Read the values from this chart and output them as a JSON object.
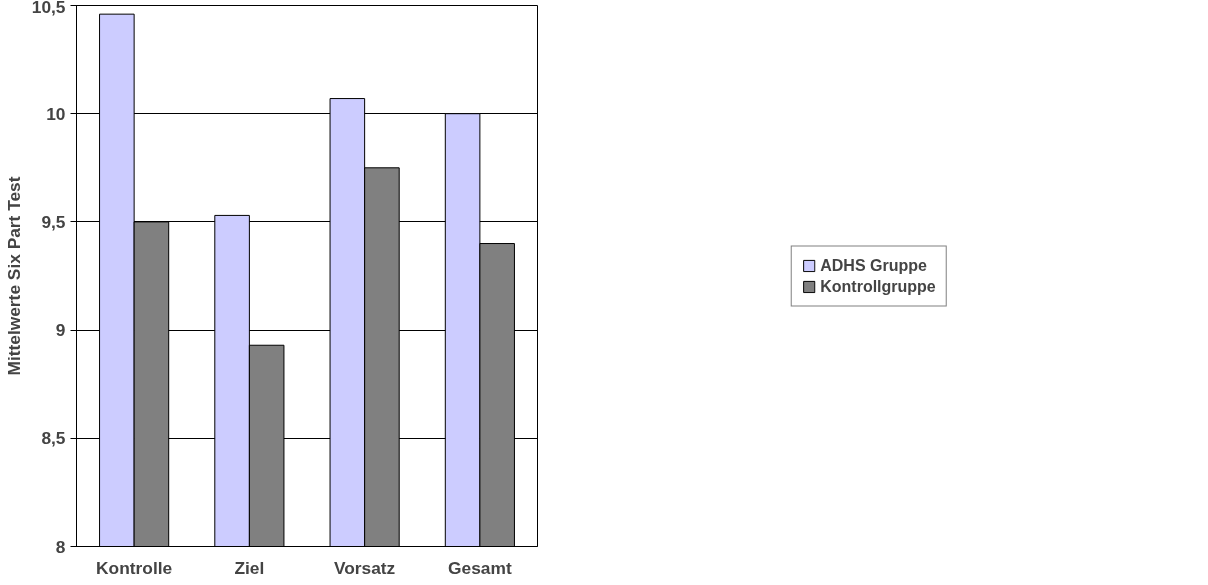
{
  "chart_data": {
    "type": "bar",
    "ylabel": "Mittelwerte Six Part Test",
    "categories": [
      "Kontrolle",
      "Ziel",
      "Vorsatz",
      "Gesamt"
    ],
    "series": [
      {
        "name": "ADHS Gruppe",
        "color": "#ccccff",
        "values": [
          10.46,
          9.53,
          10.07,
          10.0
        ]
      },
      {
        "name": "Kontrollgruppe",
        "color": "#808080",
        "values": [
          9.5,
          8.93,
          9.75,
          9.4
        ]
      }
    ],
    "ylim": [
      8,
      10.5
    ],
    "yticks": [
      8,
      {
        "value": 8.5,
        "label": "8,5"
      },
      9,
      {
        "value": 9.5,
        "label": "9,5"
      },
      10,
      {
        "value": 10.5,
        "label": "10,5"
      }
    ],
    "grid": "y",
    "legend": "right"
  }
}
